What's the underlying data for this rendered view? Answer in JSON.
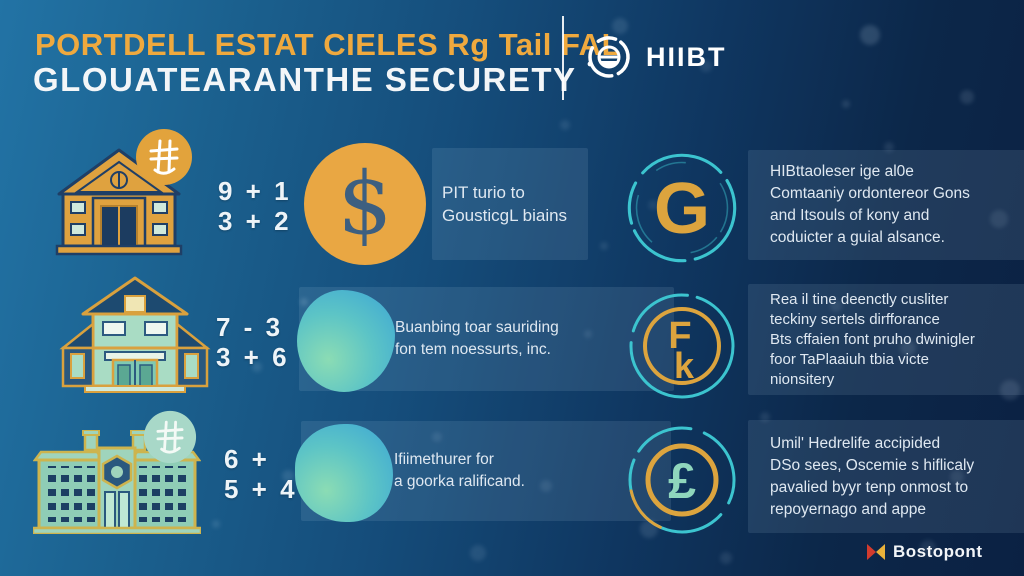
{
  "header": {
    "title_line1": "PORTDELL ESTAT CIELES Rg Tail FAL",
    "title_line2": "GLOUATEARANTHE SECURETY",
    "brand": "HIIBT",
    "brand_icon": "globe-ring-icon"
  },
  "rows": [
    {
      "left_icon": "museum-building-icon",
      "badge_icon": "currency-scribble-icon",
      "math": [
        "9 + 1",
        "3 + 2"
      ],
      "mid_icon": "dollar-coin-icon",
      "glyphs": {
        "coin": "$",
        "emblem": "G"
      },
      "mid_lines": [
        "PIT turio to",
        "GousticgL biains"
      ],
      "right_icon": "letter-g-emblem-icon",
      "right_lines": [
        "HIBttaoleser ige al0e",
        "Comtaaniy ordontereor Gons",
        "and Itsouls of kony and",
        "coduicter a guial alsance."
      ]
    },
    {
      "left_icon": "two-story-house-icon",
      "math": [
        "7 - 3",
        "3 + 6"
      ],
      "mid_icon": "teal-blob-icon",
      "glyphs": {
        "emblem_top": "F",
        "emblem_bottom": "k"
      },
      "mid_lines": [
        "Buanbing toar sauriding",
        "fon tem noessurts, inc."
      ],
      "right_icon": "letter-fk-emblem-icon",
      "right_lines": [
        "Rea il tine deenctly cusliter",
        "teckiny sertels dirfforance",
        "Bts cffaien font pruho dwinigler",
        "foor TaPlaaiuh tbia victe",
        "nionsitery"
      ]
    },
    {
      "left_icon": "bank-building-icon",
      "badge_icon": "currency-scribble-icon",
      "math": [
        "6 +",
        "5 + 4"
      ],
      "mid_icon": "teal-blob-icon",
      "glyphs": {
        "emblem": "£"
      },
      "mid_lines": [
        "Ifiimethurer for",
        "a goorka ralificand."
      ],
      "right_icon": "pound-emblem-icon",
      "right_lines": [
        "Umil' Hedrelife accipided",
        "DSo sees, Oscemie s hiflicaly",
        "pavalied byyr tenp onmost to",
        "repoyernago and appe"
      ]
    }
  ],
  "footer": {
    "brand": "Bostopont",
    "brand_icon": "bowtie-mark-icon"
  },
  "colors": {
    "accent_orange": "#E2A33C",
    "accent_teal": "#3CC4CF",
    "background_dark": "#0B2143",
    "background_light": "#2273A5",
    "panel_tint": "rgba(200,226,248,0.11)",
    "text_light": "#DFE8F1",
    "footer_red": "#D23B2E",
    "footer_yellow": "#EAB23A"
  }
}
